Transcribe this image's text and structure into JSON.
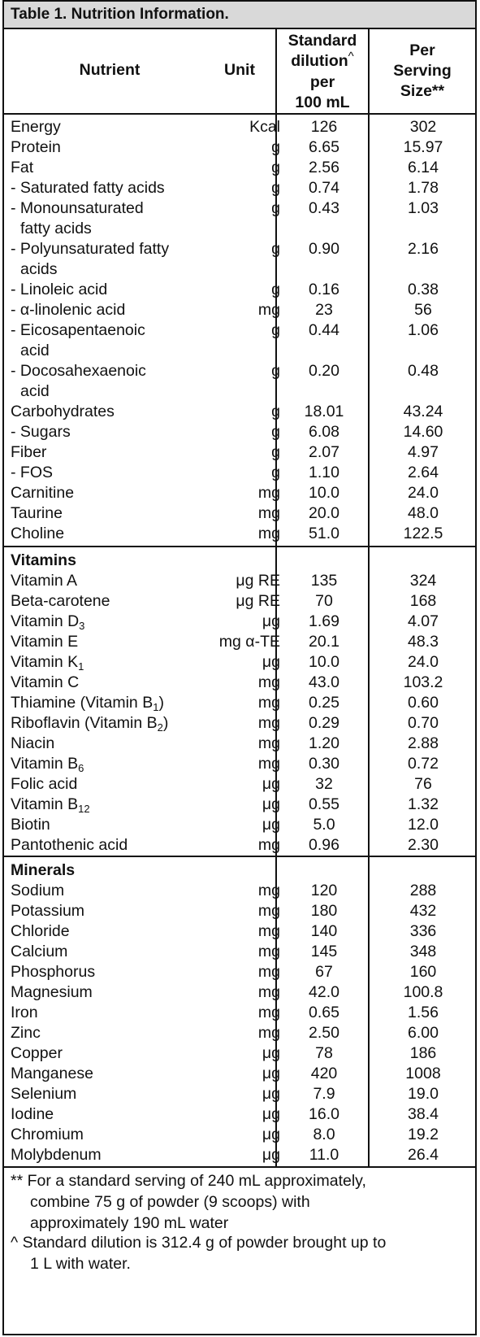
{
  "table": {
    "title": "Table 1. Nutrition Information.",
    "headers": {
      "nutrient": "Nutrient",
      "unit": "Unit",
      "std_l1": "Standard",
      "std_l2": "dilution",
      "std_caret": "^",
      "std_l3": "per",
      "std_l4": "100 mL",
      "serv_l1": "Per",
      "serv_l2": "Serving",
      "serv_l3": "Size**"
    },
    "sections": {
      "vitamins": "Vitamins",
      "minerals": "Minerals"
    },
    "general_rows": [
      {
        "name": "Energy",
        "unit": "Kcal",
        "std": "126",
        "serv": "302"
      },
      {
        "name": "Protein",
        "unit": "g",
        "std": "6.65",
        "serv": "15.97"
      },
      {
        "name": "Fat",
        "unit": "g",
        "std": "2.56",
        "serv": "6.14"
      },
      {
        "name": "- Saturated fatty acids",
        "unit": "g",
        "std": "0.74",
        "serv": "1.78"
      },
      {
        "name": "- Monounsaturated",
        "name2": "fatty acids",
        "unit": "g",
        "std": "0.43",
        "serv": "1.03"
      },
      {
        "name": "- Polyunsaturated fatty",
        "name2": "acids",
        "unit": "g",
        "std": "0.90",
        "serv": "2.16"
      },
      {
        "name": "- Linoleic acid",
        "unit": "g",
        "std": "0.16",
        "serv": "0.38"
      },
      {
        "name": "- α-linolenic acid",
        "unit": "mg",
        "std": "23",
        "serv": "56"
      },
      {
        "name": "- Eicosapentaenoic",
        "name2": "acid",
        "unit": "g",
        "std": "0.44",
        "serv": "1.06"
      },
      {
        "name": "- Docosahexaenoic",
        "name2": "acid",
        "unit": "g",
        "std": "0.20",
        "serv": "0.48"
      },
      {
        "name": "Carbohydrates",
        "unit": "g",
        "std": "18.01",
        "serv": "43.24"
      },
      {
        "name": "- Sugars",
        "unit": "g",
        "std": "6.08",
        "serv": "14.60"
      },
      {
        "name": "Fiber",
        "unit": "g",
        "std": "2.07",
        "serv": "4.97"
      },
      {
        "name": "- FOS",
        "unit": "g",
        "std": "1.10",
        "serv": "2.64"
      },
      {
        "name": "Carnitine",
        "unit": "mg",
        "std": "10.0",
        "serv": "24.0"
      },
      {
        "name": "Taurine",
        "unit": "mg",
        "std": "20.0",
        "serv": "48.0"
      },
      {
        "name": "Choline",
        "unit": "mg",
        "std": "51.0",
        "serv": "122.5"
      }
    ],
    "vitamin_rows": [
      {
        "name": "Vitamin A",
        "unit": "μg RE",
        "std": "135",
        "serv": "324"
      },
      {
        "name": "Beta-carotene",
        "unit": "μg RE",
        "std": "70",
        "serv": "168"
      },
      {
        "name": "Vitamin D",
        "sub": "3",
        "unit": "μg",
        "std": "1.69",
        "serv": "4.07"
      },
      {
        "name": "Vitamin E",
        "unit": "mg α-TE",
        "std": "20.1",
        "serv": "48.3"
      },
      {
        "name": "Vitamin K",
        "sub": "1",
        "unit": "μg",
        "std": "10.0",
        "serv": "24.0"
      },
      {
        "name": "Vitamin C",
        "unit": "mg",
        "std": "43.0",
        "serv": "103.2"
      },
      {
        "name": "Thiamine (Vitamin B",
        "sub": "1",
        "suffix": ")",
        "unit": "mg",
        "std": "0.25",
        "serv": "0.60"
      },
      {
        "name": "Riboflavin (Vitamin B",
        "sub": "2",
        "suffix": ")",
        "unit": "mg",
        "std": "0.29",
        "serv": "0.70"
      },
      {
        "name": "Niacin",
        "unit": "mg",
        "std": "1.20",
        "serv": "2.88"
      },
      {
        "name": "Vitamin B",
        "sub": "6",
        "unit": "mg",
        "std": "0.30",
        "serv": "0.72"
      },
      {
        "name": "Folic acid",
        "unit": "μg",
        "std": "32",
        "serv": "76"
      },
      {
        "name": "Vitamin B",
        "sub": "12",
        "unit": "μg",
        "std": "0.55",
        "serv": "1.32"
      },
      {
        "name": "Biotin",
        "unit": "μg",
        "std": "5.0",
        "serv": "12.0"
      },
      {
        "name": "Pantothenic acid",
        "unit": "mg",
        "std": "0.96",
        "serv": "2.30"
      }
    ],
    "mineral_rows": [
      {
        "name": "Sodium",
        "unit": "mg",
        "std": "120",
        "serv": "288"
      },
      {
        "name": "Potassium",
        "unit": "mg",
        "std": "180",
        "serv": "432"
      },
      {
        "name": "Chloride",
        "unit": "mg",
        "std": "140",
        "serv": "336"
      },
      {
        "name": "Calcium",
        "unit": "mg",
        "std": "145",
        "serv": "348"
      },
      {
        "name": "Phosphorus",
        "unit": "mg",
        "std": "67",
        "serv": "160"
      },
      {
        "name": "Magnesium",
        "unit": "mg",
        "std": "42.0",
        "serv": "100.8"
      },
      {
        "name": "Iron",
        "unit": "mg",
        "std": "0.65",
        "serv": "1.56"
      },
      {
        "name": "Zinc",
        "unit": "mg",
        "std": "2.50",
        "serv": "6.00"
      },
      {
        "name": "Copper",
        "unit": "μg",
        "std": "78",
        "serv": "186"
      },
      {
        "name": "Manganese",
        "unit": "μg",
        "std": "420",
        "serv": "1008"
      },
      {
        "name": "Selenium",
        "unit": "μg",
        "std": "7.9",
        "serv": "19.0"
      },
      {
        "name": "Iodine",
        "unit": "μg",
        "std": "16.0",
        "serv": "38.4"
      },
      {
        "name": "Chromium",
        "unit": "μg",
        "std": "8.0",
        "serv": "19.2"
      },
      {
        "name": "Molybdenum",
        "unit": "μg",
        "std": "11.0",
        "serv": "26.4"
      }
    ],
    "footnotes": {
      "f1_l1": "** For a standard serving of 240 mL approximately,",
      "f1_l2": "combine 75 g of powder (9 scoops) with",
      "f1_l3": "approximately 190 mL water",
      "f2_l1": "^ Standard dilution is 312.4 g of powder brought up to",
      "f2_l2": "1 L with water."
    }
  }
}
